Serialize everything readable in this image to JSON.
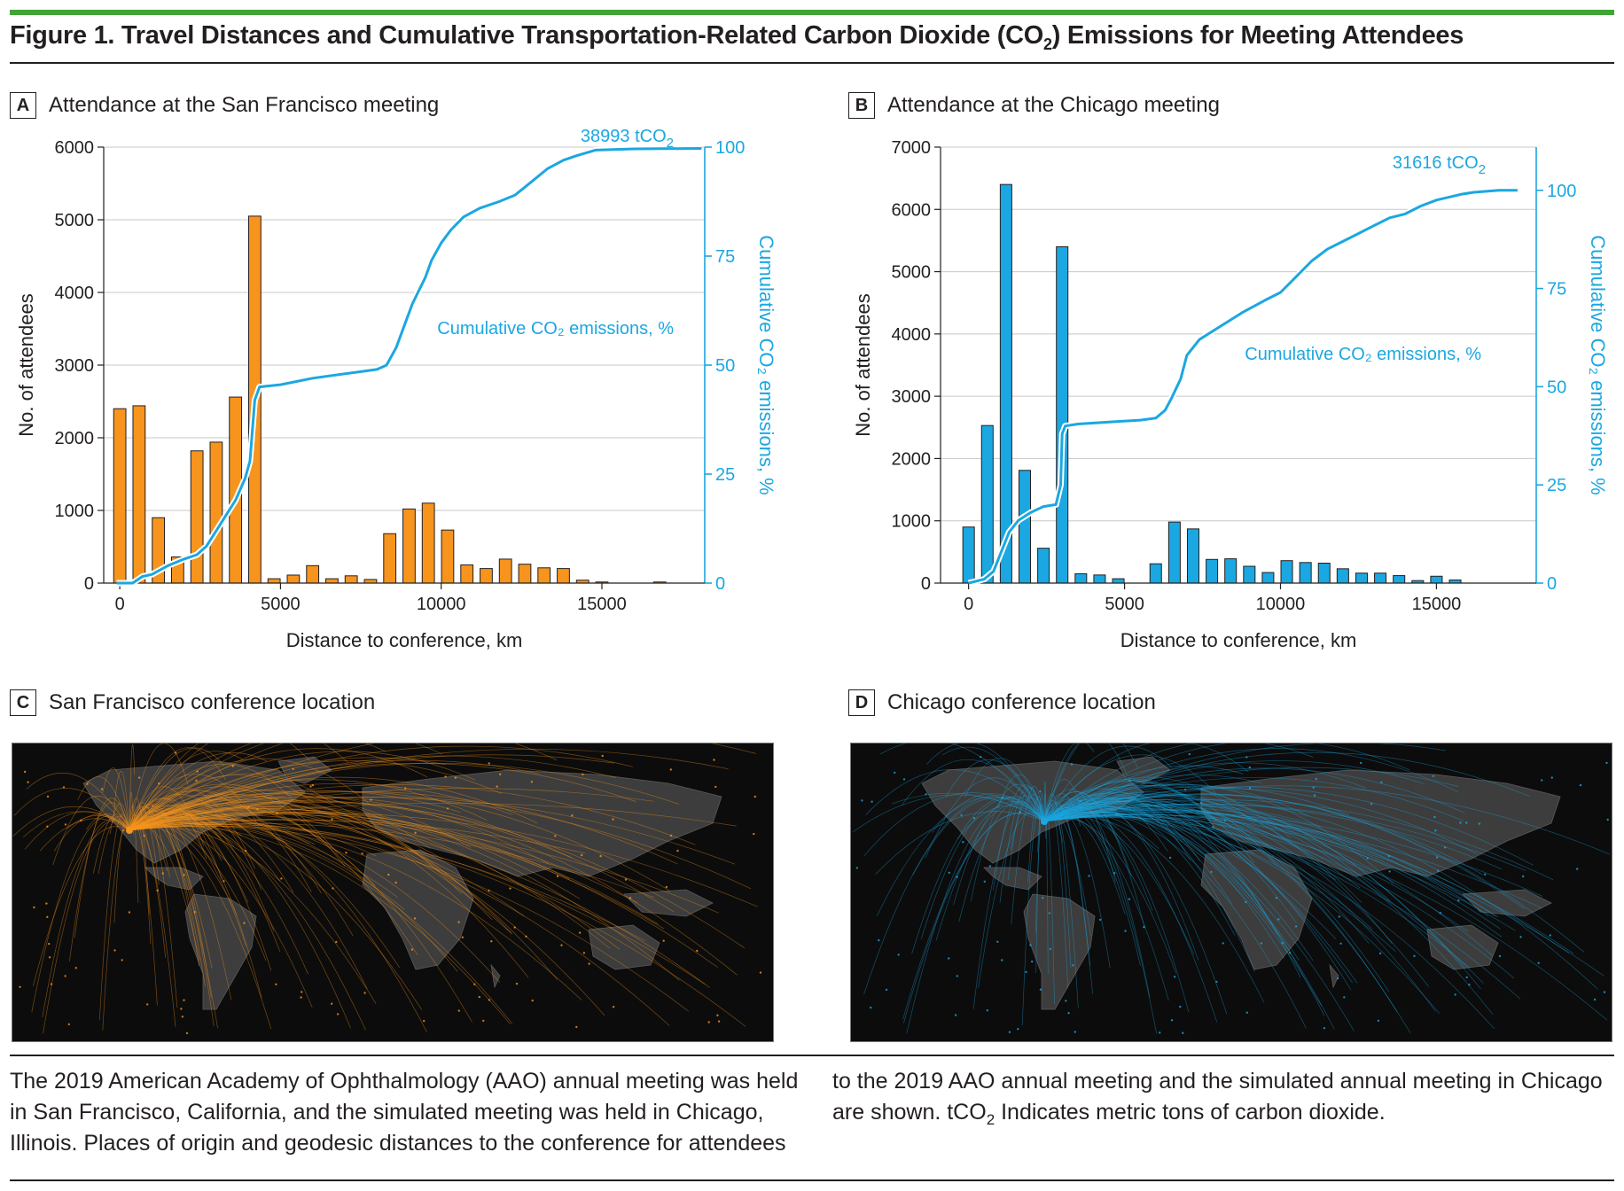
{
  "figure": {
    "title_prefix": "Figure 1. Travel Distances and Cumulative Transportation-Related Carbon Dioxide (CO",
    "title_sub": "2",
    "title_suffix": ") Emissions for Meeting Attendees"
  },
  "panels": {
    "a": {
      "letter": "A",
      "label": "Attendance at the San Francisco meeting"
    },
    "b": {
      "letter": "B",
      "label": "Attendance at the Chicago meeting"
    },
    "c": {
      "letter": "C",
      "label": "San Francisco conference location"
    },
    "d": {
      "letter": "D",
      "label": "Chicago conference location"
    }
  },
  "caption": {
    "left": "The 2019 American Academy of Ophthalmology (AAO) annual meeting was held in San Francisco, California, and the simulated meeting was held in Chicago, Illinois. Places of origin and geodesic distances to the conference for attendees",
    "right_before": "to the 2019 AAO annual meeting and the simulated annual meeting in Chicago are shown. tCO",
    "right_sub": "2",
    "right_after": " Indicates metric tons of carbon dioxide."
  },
  "colors": {
    "orange": "#f7941d",
    "blue": "#1ba7e1",
    "cumline": "#1ba7e1",
    "map_bg": "#0c0c0c",
    "land": "#3d3d3d"
  },
  "chart_data": [
    {
      "type": "bar",
      "panel": "A",
      "xlabel": "Distance to conference, km",
      "ylabel": "No. of attendees",
      "y2label": "Cumulative CO₂ emissions, %",
      "xlim": [
        -500,
        18200
      ],
      "ylim": [
        0,
        6000
      ],
      "y2lim": [
        0,
        100
      ],
      "xticks": [
        0,
        5000,
        10000,
        15000
      ],
      "xtick_labels": [
        "0",
        "5000",
        "10000",
        "15000"
      ],
      "yticks": [
        0,
        1000,
        2000,
        3000,
        4000,
        5000,
        6000
      ],
      "y2ticks": [
        0,
        25,
        50,
        75,
        100
      ],
      "grid": true,
      "bar_color": "#f7941d",
      "bar_width": 380,
      "bars_x": [
        0,
        600,
        1200,
        1800,
        2400,
        3000,
        3600,
        4200,
        4800,
        5400,
        6000,
        6600,
        7200,
        7800,
        8400,
        9000,
        9600,
        10200,
        10800,
        11400,
        12000,
        12600,
        13200,
        13800,
        14400,
        15000,
        15600,
        16200,
        16800
      ],
      "bars_y": [
        2400,
        2440,
        900,
        360,
        1820,
        1940,
        2560,
        5050,
        60,
        110,
        240,
        60,
        100,
        50,
        680,
        1020,
        1100,
        730,
        250,
        200,
        330,
        260,
        210,
        200,
        40,
        15,
        0,
        0,
        15
      ],
      "cumulative": {
        "name": "Cumulative CO₂ emissions, %",
        "total_prefix": "38993 tCO",
        "total_sub": "2",
        "x": [
          -100,
          400,
          700,
          1000,
          1500,
          2000,
          2400,
          2700,
          3000,
          3300,
          3600,
          3900,
          4050,
          4200,
          4350,
          5000,
          6000,
          7000,
          7500,
          8000,
          8300,
          8600,
          8900,
          9100,
          9300,
          9500,
          9700,
          10000,
          10300,
          10700,
          11200,
          11800,
          12300,
          12800,
          13300,
          13800,
          14200,
          14800,
          16000,
          18100
        ],
        "y": [
          0,
          0,
          1.5,
          2,
          4,
          5.5,
          6.5,
          8.5,
          12,
          15.5,
          19,
          24,
          28,
          42,
          45,
          45.5,
          47,
          48,
          48.5,
          49,
          50,
          54,
          60,
          64,
          67,
          70,
          74,
          78,
          81,
          84,
          86,
          87.5,
          89,
          92,
          95,
          97,
          98,
          99.3,
          99.6,
          99.7
        ]
      }
    },
    {
      "type": "bar",
      "panel": "B",
      "xlabel": "Distance to conference, km",
      "ylabel": "No. of attendees",
      "y2label": "Cumulative CO₂ emissions, %",
      "xlim": [
        -900,
        18200
      ],
      "ylim": [
        0,
        7000
      ],
      "y2lim": [
        0,
        111
      ],
      "xticks": [
        0,
        5000,
        10000,
        15000
      ],
      "xtick_labels": [
        "0",
        "5000",
        "10000",
        "15000"
      ],
      "yticks": [
        0,
        1000,
        2000,
        3000,
        4000,
        5000,
        6000,
        7000
      ],
      "y2ticks": [
        0,
        25,
        50,
        75,
        100
      ],
      "grid": true,
      "bar_color": "#1ba7e1",
      "bar_width": 370,
      "bars_x": [
        0,
        600,
        1200,
        1800,
        2400,
        3000,
        3600,
        4200,
        4800,
        5400,
        6000,
        6600,
        7200,
        7800,
        8400,
        9000,
        9600,
        10200,
        10800,
        11400,
        12000,
        12600,
        13200,
        13800,
        14400,
        15000,
        15600,
        16200
      ],
      "bars_y": [
        900,
        2530,
        6400,
        1810,
        560,
        5400,
        150,
        130,
        70,
        0,
        310,
        980,
        870,
        380,
        390,
        270,
        170,
        360,
        330,
        320,
        230,
        160,
        160,
        120,
        40,
        110,
        50,
        0
      ],
      "cumulative": {
        "name": "Cumulative CO₂ emissions, %",
        "total_prefix": "31616 tCO",
        "total_sub": "2",
        "x": [
          0,
          500,
          800,
          1000,
          1300,
          1600,
          2000,
          2400,
          2800,
          2950,
          3000,
          3100,
          3500,
          4500,
          5500,
          6000,
          6300,
          6500,
          6800,
          7000,
          7400,
          8000,
          8800,
          9500,
          10000,
          10500,
          11000,
          11500,
          12000,
          12500,
          13000,
          13500,
          14000,
          14500,
          15000,
          15800,
          16200,
          17000,
          17600
        ],
        "y": [
          0,
          1,
          3,
          7,
          13,
          16,
          18,
          19.5,
          20,
          25,
          38,
          40,
          40.5,
          41,
          41.5,
          42,
          44,
          47,
          52,
          58,
          62,
          65,
          69,
          72,
          74,
          78,
          82,
          85,
          87,
          89,
          91,
          93,
          94,
          96,
          97.5,
          99,
          99.5,
          100,
          100
        ]
      }
    }
  ]
}
